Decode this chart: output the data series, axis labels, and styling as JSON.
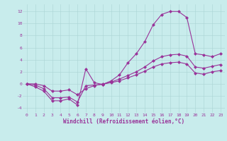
{
  "title": "",
  "xlabel": "Windchill (Refroidissement éolien,°C)",
  "ylabel": "",
  "bg_color": "#c8ecec",
  "line_color": "#993399",
  "marker": "D",
  "markersize": 2.5,
  "linewidth": 0.8,
  "xlim": [
    -0.5,
    23.5
  ],
  "ylim": [
    -4.8,
    13.2
  ],
  "xticks": [
    0,
    1,
    2,
    3,
    4,
    5,
    6,
    7,
    8,
    9,
    10,
    11,
    12,
    13,
    14,
    15,
    16,
    17,
    18,
    19,
    20,
    21,
    22,
    23
  ],
  "yticks": [
    -4,
    -2,
    0,
    2,
    4,
    6,
    8,
    10,
    12
  ],
  "grid_color": "#aad4d4",
  "tick_color": "#993399",
  "tick_fontsize": 4.5,
  "xlabel_fontsize": 5.5,
  "line1_x": [
    0,
    1,
    2,
    3,
    4,
    5,
    6,
    7,
    8,
    9,
    10,
    11,
    12,
    13,
    14,
    15,
    16,
    17,
    18,
    19,
    20,
    21,
    22,
    23
  ],
  "line1_y": [
    0,
    -0.5,
    -1.2,
    -2.8,
    -2.8,
    -2.5,
    -3.5,
    2.5,
    0.2,
    -0.1,
    0.5,
    1.5,
    3.5,
    5.0,
    7.0,
    9.8,
    11.5,
    12.0,
    12.0,
    11.0,
    5.0,
    4.8,
    4.5,
    5.0
  ],
  "line2_x": [
    0,
    1,
    2,
    3,
    4,
    5,
    6,
    7,
    8,
    9,
    10,
    11,
    12,
    13,
    14,
    15,
    16,
    17,
    18,
    19,
    20,
    21,
    22,
    23
  ],
  "line2_y": [
    0,
    -0.2,
    -0.8,
    -2.3,
    -2.3,
    -2.2,
    -3.0,
    -0.3,
    -0.2,
    -0.1,
    0.3,
    0.8,
    1.4,
    2.0,
    2.8,
    3.8,
    4.5,
    4.8,
    4.9,
    4.6,
    2.8,
    2.6,
    2.9,
    3.2
  ],
  "line3_x": [
    0,
    1,
    2,
    3,
    4,
    5,
    6,
    7,
    8,
    9,
    10,
    11,
    12,
    13,
    14,
    15,
    16,
    17,
    18,
    19,
    20,
    21,
    22,
    23
  ],
  "line3_y": [
    0,
    0.0,
    -0.3,
    -1.2,
    -1.2,
    -1.0,
    -1.8,
    -0.8,
    -0.3,
    0.0,
    0.2,
    0.5,
    1.0,
    1.5,
    2.1,
    2.8,
    3.3,
    3.5,
    3.6,
    3.3,
    1.8,
    1.6,
    2.0,
    2.2
  ]
}
